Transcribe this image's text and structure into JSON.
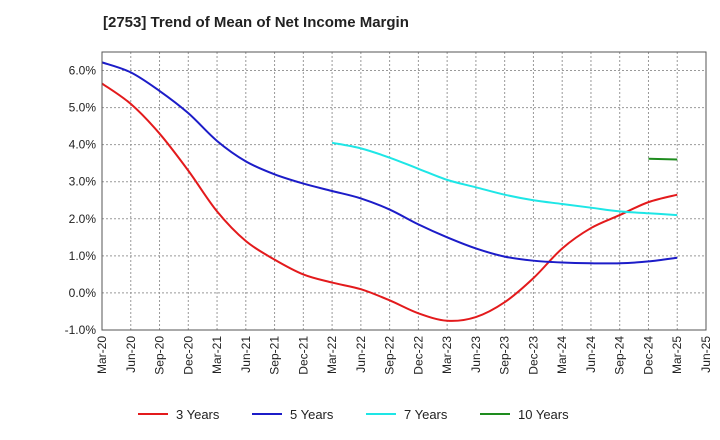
{
  "chart_data": {
    "type": "line",
    "title": "[2753]  Trend of Mean of Net Income Margin",
    "xlabel": "",
    "ylabel": "",
    "x_ticks": [
      "Mar-20",
      "Jun-20",
      "Sep-20",
      "Dec-20",
      "Mar-21",
      "Jun-21",
      "Sep-21",
      "Dec-21",
      "Mar-22",
      "Jun-22",
      "Sep-22",
      "Dec-22",
      "Mar-23",
      "Jun-23",
      "Sep-23",
      "Dec-23",
      "Mar-24",
      "Jun-24",
      "Sep-24",
      "Dec-24",
      "Mar-25",
      "Jun-25"
    ],
    "y_ticks": [
      "-1.0%",
      "0.0%",
      "1.0%",
      "2.0%",
      "3.0%",
      "4.0%",
      "5.0%",
      "6.0%"
    ],
    "ylim": [
      -1.0,
      6.5
    ],
    "grid": true,
    "legend_position": "bottom",
    "series": [
      {
        "name": "3 Years",
        "color": "#e31a1c",
        "x": [
          "Mar-20",
          "Jun-20",
          "Sep-20",
          "Dec-20",
          "Mar-21",
          "Jun-21",
          "Sep-21",
          "Dec-21",
          "Mar-22",
          "Jun-22",
          "Sep-22",
          "Dec-22",
          "Mar-23",
          "Jun-23",
          "Sep-23",
          "Dec-23",
          "Mar-24",
          "Jun-24",
          "Sep-24",
          "Dec-24",
          "Mar-25"
        ],
        "values": [
          5.65,
          5.1,
          4.3,
          3.3,
          2.2,
          1.4,
          0.9,
          0.5,
          0.28,
          0.1,
          -0.2,
          -0.55,
          -0.75,
          -0.65,
          -0.25,
          0.4,
          1.2,
          1.75,
          2.1,
          2.45,
          2.65
        ]
      },
      {
        "name": "5 Years",
        "color": "#1c1cc8",
        "x": [
          "Mar-20",
          "Jun-20",
          "Sep-20",
          "Dec-20",
          "Mar-21",
          "Jun-21",
          "Sep-21",
          "Dec-21",
          "Mar-22",
          "Jun-22",
          "Sep-22",
          "Dec-22",
          "Mar-23",
          "Jun-23",
          "Sep-23",
          "Dec-23",
          "Mar-24",
          "Jun-24",
          "Sep-24",
          "Dec-24",
          "Mar-25"
        ],
        "values": [
          6.22,
          5.95,
          5.45,
          4.85,
          4.1,
          3.55,
          3.2,
          2.95,
          2.75,
          2.55,
          2.25,
          1.85,
          1.5,
          1.2,
          0.98,
          0.87,
          0.82,
          0.8,
          0.8,
          0.85,
          0.95
        ]
      },
      {
        "name": "7 Years",
        "color": "#1ee6e6",
        "x": [
          "Mar-22",
          "Jun-22",
          "Sep-22",
          "Dec-22",
          "Mar-23",
          "Jun-23",
          "Sep-23",
          "Dec-23",
          "Mar-24",
          "Jun-24",
          "Sep-24",
          "Dec-24",
          "Mar-25"
        ],
        "values": [
          4.05,
          3.9,
          3.65,
          3.35,
          3.05,
          2.85,
          2.65,
          2.5,
          2.4,
          2.3,
          2.2,
          2.15,
          2.1
        ]
      },
      {
        "name": "10 Years",
        "color": "#1e8c1e",
        "x": [
          "Dec-24",
          "Mar-25"
        ],
        "values": [
          3.62,
          3.6
        ]
      }
    ]
  }
}
